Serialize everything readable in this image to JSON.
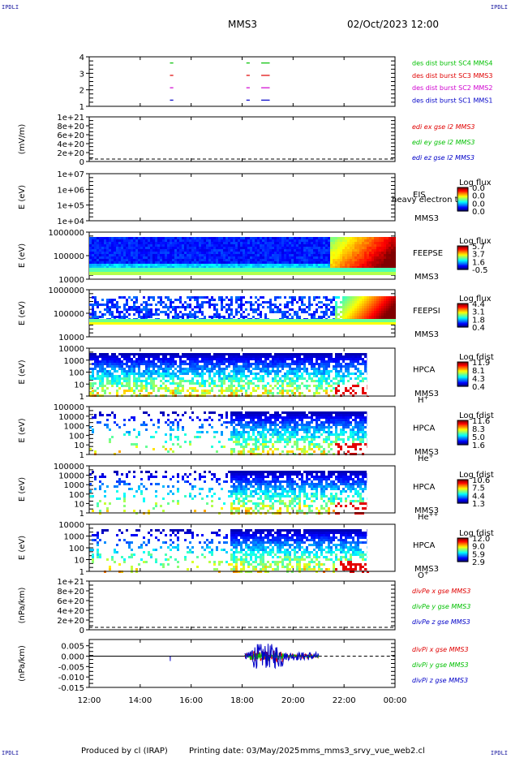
{
  "header": {
    "spacecraft": "MMS3",
    "datetime": "02/Oct/2023 12:00",
    "corner_tag": "IPDLI"
  },
  "footer": {
    "produced_by": "Produced by cl (IRAP)",
    "printing_date": "Printing date: 03/May/2025",
    "script_name": "mms_mms3_srvy_vue_web2.cl"
  },
  "colors": {
    "red": "#e00000",
    "green": "#00c000",
    "magenta": "#d000d0",
    "blue": "#0000c8",
    "black": "#000000"
  },
  "chart_data": [
    {
      "type": "line",
      "title": "Burst intervals",
      "yticks": [
        "1",
        "2",
        "3",
        "4"
      ],
      "ylim": [
        0.5,
        4.5
      ],
      "x": [
        "12:00",
        "14:00",
        "16:00",
        "18:00",
        "20:00",
        "22:00",
        "00:00"
      ],
      "series": [
        {
          "name": "des dist burst SC1 MMS1",
          "color": "#0000c8",
          "level": 1,
          "segments": [
            [
              "15:10",
              "15:18"
            ],
            [
              "18:10",
              "18:18"
            ],
            [
              "18:45",
              "19:05"
            ]
          ]
        },
        {
          "name": "des dist burst SC2 MMS2",
          "color": "#d000d0",
          "level": 2,
          "segments": [
            [
              "15:10",
              "15:18"
            ],
            [
              "18:10",
              "18:18"
            ],
            [
              "18:45",
              "19:05"
            ]
          ]
        },
        {
          "name": "des dist burst SC3 MMS3",
          "color": "#e00000",
          "level": 3,
          "segments": [
            [
              "15:10",
              "15:18"
            ],
            [
              "18:10",
              "18:18"
            ],
            [
              "18:45",
              "19:05"
            ]
          ]
        },
        {
          "name": "des dist burst SC4 MMS4",
          "color": "#00c000",
          "level": 4,
          "segments": [
            [
              "15:10",
              "15:18"
            ],
            [
              "18:10",
              "18:18"
            ],
            [
              "18:45",
              "19:05"
            ]
          ]
        }
      ]
    },
    {
      "type": "line",
      "ylabel": "(mV/m)",
      "yticks": [
        "0",
        "2e+20",
        "4e+20",
        "6e+20",
        "8e+20",
        "1e+21"
      ],
      "series": [
        {
          "name": "edi ex gse l2 MMS3",
          "color": "#e00000"
        },
        {
          "name": "edi ey gse l2 MMS3",
          "color": "#00c000"
        },
        {
          "name": "edi ez gse l2 MMS3",
          "color": "#0000c8"
        }
      ]
    },
    {
      "type": "heatmap",
      "ylabel": "E (eV)",
      "yticks": [
        "1e+04",
        "1e+05",
        "1e+06",
        "1e+07"
      ],
      "labels": [
        "EIS",
        "MMS3"
      ],
      "overlay_text": "heavy electron to",
      "colorbar": {
        "title": "Log flux",
        "ticks": [
          "0.0",
          "0.0",
          "0.0",
          "0.0"
        ]
      }
    },
    {
      "type": "heatmap",
      "ylabel": "E (eV)",
      "yticks": [
        "10000",
        "100000",
        "1000000"
      ],
      "labels": [
        "FEEPSE",
        "MMS3"
      ],
      "colorbar": {
        "title": "Log flux",
        "ticks": [
          "5.7",
          "3.7",
          "1.6",
          "-0.5"
        ]
      }
    },
    {
      "type": "heatmap",
      "ylabel": "E (eV)",
      "yticks": [
        "10000",
        "100000",
        "1000000"
      ],
      "labels": [
        "FEEPSI",
        "MMS3"
      ],
      "colorbar": {
        "title": "Log flux",
        "ticks": [
          "4.4",
          "3.1",
          "1.8",
          "0.4"
        ]
      }
    },
    {
      "type": "heatmap",
      "ylabel": "E (eV)",
      "yticks": [
        "1",
        "10",
        "100",
        "1000",
        "10000"
      ],
      "labels": [
        "HPCA",
        "MMS3"
      ],
      "species": "H",
      "species_sup": "+",
      "colorbar": {
        "title": "Log fdist",
        "ticks": [
          "11.9",
          "8.1",
          "4.3",
          "0.4"
        ]
      }
    },
    {
      "type": "heatmap",
      "ylabel": "E (eV)",
      "yticks": [
        "1",
        "10",
        "100",
        "1000",
        "10000",
        "100000"
      ],
      "labels": [
        "HPCA",
        "MMS3"
      ],
      "species": "He",
      "species_sup": "+",
      "colorbar": {
        "title": "Log fdist",
        "ticks": [
          "11.6",
          "8.3",
          "5.0",
          "1.6"
        ]
      }
    },
    {
      "type": "heatmap",
      "ylabel": "E (eV)",
      "yticks": [
        "1",
        "10",
        "100",
        "1000",
        "10000",
        "100000"
      ],
      "labels": [
        "HPCA",
        "MMS3"
      ],
      "species": "He",
      "species_sup": "++",
      "colorbar": {
        "title": "Log fdist",
        "ticks": [
          "10.6",
          "7.5",
          "4.4",
          "1.3"
        ]
      }
    },
    {
      "type": "heatmap",
      "ylabel": "E (eV)",
      "yticks": [
        "1",
        "10",
        "100",
        "1000",
        "10000"
      ],
      "labels": [
        "HPCA",
        "MMS3"
      ],
      "species": "O",
      "species_sup": "+",
      "colorbar": {
        "title": "Log fdist",
        "ticks": [
          "12.0",
          "9.0",
          "5.9",
          "2.9"
        ]
      }
    },
    {
      "type": "line",
      "ylabel": "(nPa/km)",
      "yticks": [
        "0",
        "2e+20",
        "4e+20",
        "6e+20",
        "8e+20",
        "1e+21"
      ],
      "series": [
        {
          "name": "divPe x gse MMS3",
          "color": "#e00000"
        },
        {
          "name": "divPe y gse MMS3",
          "color": "#00c000"
        },
        {
          "name": "divPe z gse MMS3",
          "color": "#0000c8"
        }
      ]
    },
    {
      "type": "line",
      "ylabel": "(nPa/km)",
      "yticks": [
        "-0.015",
        "-0.010",
        "-0.005",
        "0.000",
        "0.005"
      ],
      "ylim": [
        -0.015,
        0.008
      ],
      "x_ticks": [
        "12:00",
        "14:00",
        "16:00",
        "18:00",
        "20:00",
        "22:00",
        "00:00"
      ],
      "series": [
        {
          "name": "divPi x gse MMS3",
          "color": "#e00000"
        },
        {
          "name": "divPi y gse MMS3",
          "color": "#00c000"
        },
        {
          "name": "divPi z gse MMS3",
          "color": "#0000c8"
        }
      ]
    }
  ]
}
